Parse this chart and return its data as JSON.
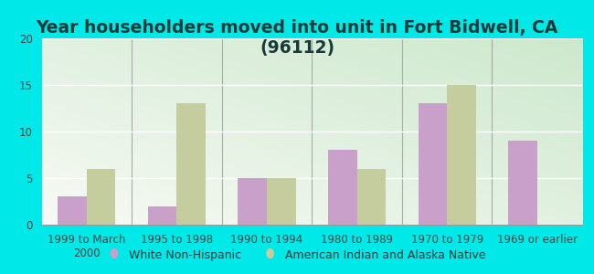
{
  "title": "Year householders moved into unit in Fort Bidwell, CA (96112)",
  "categories": [
    "1999 to March\n2000",
    "1995 to 1998",
    "1990 to 1994",
    "1980 to 1989",
    "1970 to 1979",
    "1969 or earlier"
  ],
  "white_non_hispanic": [
    3,
    2,
    5,
    8,
    13,
    9
  ],
  "american_indian": [
    6,
    13,
    5,
    6,
    15,
    0
  ],
  "white_color": "#c9a0c9",
  "indian_color": "#c5cc9e",
  "background_outer": "#00e8e8",
  "background_inner_grad_top": "#f0f5ec",
  "background_inner_grad_bottom": "#d8edd8",
  "ylim": [
    0,
    20
  ],
  "yticks": [
    0,
    5,
    10,
    15,
    20
  ],
  "bar_width": 0.32,
  "legend_white": "White Non-Hispanic",
  "legend_indian": "American Indian and Alaska Native",
  "title_fontsize": 13.5,
  "tick_fontsize": 8.5,
  "legend_fontsize": 9,
  "title_color": "#1a3a3a"
}
